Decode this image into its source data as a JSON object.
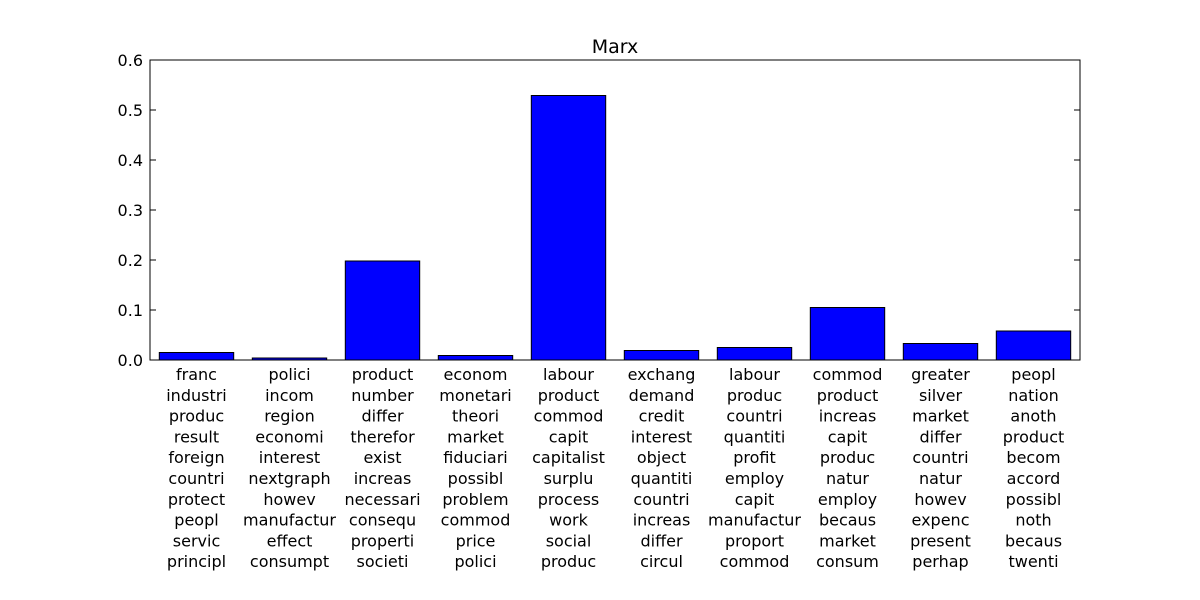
{
  "chart_data": {
    "type": "bar",
    "title": "Marx",
    "xlabel": "",
    "ylabel": "",
    "ylim": [
      0,
      0.6
    ],
    "yticks": [
      "0.0",
      "0.1",
      "0.2",
      "0.3",
      "0.4",
      "0.5",
      "0.6"
    ],
    "bar_color": "#0000ff",
    "edge_color": "#000000",
    "grid": false,
    "categories": [
      [
        "franc",
        "industri",
        "produc",
        "result",
        "foreign",
        "countri",
        "protect",
        "peopl",
        "servic",
        "principl"
      ],
      [
        "polici",
        "incom",
        "region",
        "economi",
        "interest",
        "nextgraph",
        "howev",
        "manufactur",
        "effect",
        "consumpt"
      ],
      [
        "product",
        "number",
        "differ",
        "therefor",
        "exist",
        "increas",
        "necessari",
        "consequ",
        "properti",
        "societi"
      ],
      [
        "econom",
        "monetari",
        "theori",
        "market",
        "fiduciari",
        "possibl",
        "problem",
        "commod",
        "price",
        "polici"
      ],
      [
        "labour",
        "product",
        "commod",
        "capit",
        "capitalist",
        "surplu",
        "process",
        "work",
        "social",
        "produc"
      ],
      [
        "exchang",
        "demand",
        "credit",
        "interest",
        "object",
        "quantiti",
        "countri",
        "increas",
        "differ",
        "circul"
      ],
      [
        "labour",
        "produc",
        "countri",
        "quantiti",
        "profit",
        "employ",
        "capit",
        "manufactur",
        "proport",
        "commod"
      ],
      [
        "commod",
        "product",
        "increas",
        "capit",
        "produc",
        "natur",
        "employ",
        "becaus",
        "market",
        "consum"
      ],
      [
        "greater",
        "silver",
        "market",
        "differ",
        "countri",
        "natur",
        "howev",
        "expenc",
        "present",
        "perhap"
      ],
      [
        "peopl",
        "nation",
        "anoth",
        "product",
        "becom",
        "accord",
        "possibl",
        "noth",
        "becaus",
        "twenti"
      ]
    ],
    "values": [
      0.015,
      0.004,
      0.198,
      0.009,
      0.529,
      0.019,
      0.025,
      0.105,
      0.033,
      0.058
    ]
  }
}
